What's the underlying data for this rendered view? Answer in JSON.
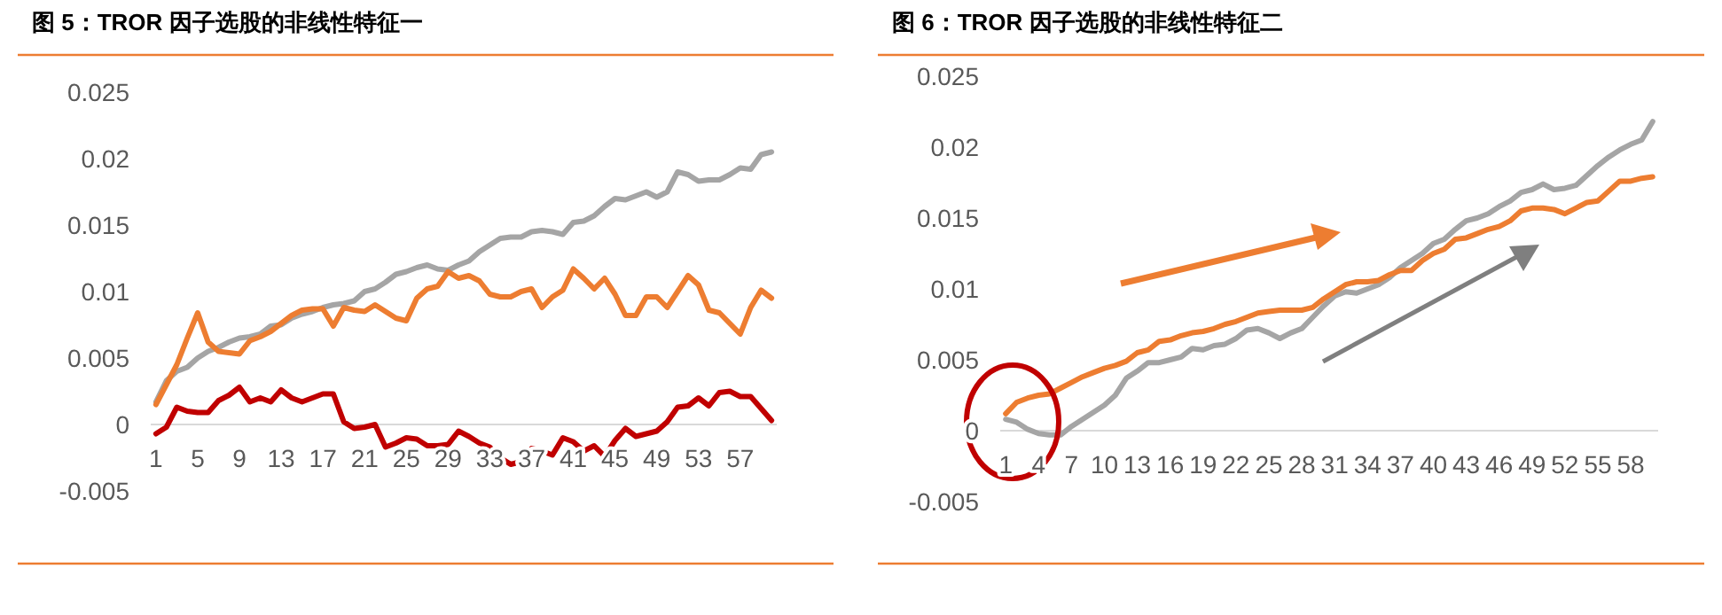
{
  "chart_data": [
    {
      "type": "line",
      "title": "图 5：TROR 因子选股的非线性特征一",
      "categories": [
        "1",
        null,
        null,
        null,
        "5",
        null,
        null,
        null,
        "9",
        null,
        null,
        null,
        "13",
        null,
        null,
        null,
        "17",
        null,
        null,
        null,
        "21",
        null,
        null,
        null,
        "25",
        null,
        null,
        null,
        "29",
        null,
        null,
        null,
        "33",
        null,
        null,
        null,
        "37",
        null,
        null,
        null,
        "41",
        null,
        null,
        null,
        "45",
        null,
        null,
        null,
        "49",
        null,
        null,
        null,
        "53",
        null,
        null,
        null,
        "57",
        null,
        null,
        null
      ],
      "ylim": [
        -0.005,
        0.025
      ],
      "yticks": [
        -0.005,
        0,
        0.005,
        0.01,
        0.015,
        0.02,
        0.025
      ],
      "grid": false,
      "marker": "none",
      "line_style": "solid",
      "series": [
        {
          "color": "#a5a5a5",
          "values": [
            0.0017,
            0.0033,
            0.004,
            0.0043,
            0.005,
            0.0055,
            0.0058,
            0.0062,
            0.0065,
            0.0066,
            0.0068,
            0.0074,
            0.0075,
            0.008,
            0.0083,
            0.0085,
            0.0088,
            0.009,
            0.0091,
            0.0093,
            0.01,
            0.0102,
            0.0107,
            0.0113,
            0.0115,
            0.0118,
            0.012,
            0.0117,
            0.0116,
            0.012,
            0.0123,
            0.013,
            0.0135,
            0.014,
            0.0141,
            0.0141,
            0.0145,
            0.0146,
            0.0145,
            0.0143,
            0.0152,
            0.0153,
            0.0157,
            0.0164,
            0.017,
            0.0169,
            0.0172,
            0.0175,
            0.0171,
            0.0175,
            0.019,
            0.0188,
            0.0183,
            0.0184,
            0.0184,
            0.0188,
            0.0193,
            0.0192,
            0.0203,
            0.0205
          ]
        },
        {
          "color": "#ed7d31",
          "values": [
            0.0015,
            0.003,
            0.0045,
            0.0065,
            0.0084,
            0.0062,
            0.0055,
            0.0054,
            0.0053,
            0.0063,
            0.0066,
            0.007,
            0.0076,
            0.0082,
            0.0086,
            0.0087,
            0.0087,
            0.0074,
            0.0088,
            0.0086,
            0.0085,
            0.009,
            0.0085,
            0.008,
            0.0078,
            0.0095,
            0.0102,
            0.0104,
            0.0115,
            0.011,
            0.0112,
            0.0108,
            0.0098,
            0.0096,
            0.0096,
            0.01,
            0.0102,
            0.0088,
            0.0096,
            0.0101,
            0.0117,
            0.011,
            0.0102,
            0.011,
            0.0098,
            0.0082,
            0.0082,
            0.0096,
            0.0096,
            0.0088,
            0.01,
            0.0112,
            0.0105,
            0.0086,
            0.0084,
            0.0076,
            0.0068,
            0.0088,
            0.0101,
            0.0095
          ]
        },
        {
          "color": "#c00000",
          "values": [
            -0.0007,
            -0.0002,
            0.0013,
            0.001,
            0.0009,
            0.0009,
            0.0018,
            0.0022,
            0.0028,
            0.0017,
            0.002,
            0.0017,
            0.0026,
            0.002,
            0.0017,
            0.002,
            0.0023,
            0.0023,
            0.0002,
            -0.0003,
            -0.0002,
            0.0,
            -0.0017,
            -0.0014,
            -0.001,
            -0.0011,
            -0.0016,
            -0.0016,
            -0.0015,
            -0.0005,
            -0.0009,
            -0.0014,
            -0.0017,
            -0.0025,
            -0.003,
            -0.0028,
            -0.0018,
            -0.002,
            -0.0023,
            -0.001,
            -0.0013,
            -0.002,
            -0.0016,
            -0.0024,
            -0.0012,
            -0.0003,
            -0.0009,
            -0.0007,
            -0.0005,
            0.0002,
            0.0013,
            0.0014,
            0.002,
            0.0014,
            0.0024,
            0.0025,
            0.0021,
            0.0021,
            0.0012,
            0.0003
          ]
        }
      ]
    },
    {
      "type": "line",
      "title": "图 6：TROR 因子选股的非线性特征二",
      "categories": [
        "1",
        null,
        null,
        "4",
        null,
        null,
        "7",
        null,
        null,
        "10",
        null,
        null,
        "13",
        null,
        null,
        "16",
        null,
        null,
        "19",
        null,
        null,
        "22",
        null,
        null,
        "25",
        null,
        null,
        "28",
        null,
        null,
        "31",
        null,
        null,
        "34",
        null,
        null,
        "37",
        null,
        null,
        "40",
        null,
        null,
        "43",
        null,
        null,
        "46",
        null,
        null,
        "49",
        null,
        null,
        "52",
        null,
        null,
        "55",
        null,
        null,
        "58",
        null,
        null
      ],
      "ylim": [
        -0.005,
        0.025
      ],
      "yticks": [
        -0.005,
        0,
        0.005,
        0.01,
        0.015,
        0.02,
        0.025
      ],
      "grid": false,
      "marker": "none",
      "line_style": "solid",
      "series": [
        {
          "color": "#a5a5a5",
          "values": [
            0.0008,
            0.0006,
            0.0001,
            -0.0002,
            -0.0003,
            -0.0003,
            0.0003,
            0.0008,
            0.0013,
            0.0018,
            0.0025,
            0.0037,
            0.0042,
            0.0048,
            0.0048,
            0.005,
            0.0052,
            0.0058,
            0.0057,
            0.006,
            0.0061,
            0.0065,
            0.0071,
            0.0072,
            0.0069,
            0.0065,
            0.0069,
            0.0072,
            0.008,
            0.0088,
            0.0095,
            0.0098,
            0.0097,
            0.01,
            0.0103,
            0.0108,
            0.0115,
            0.012,
            0.0125,
            0.0132,
            0.0135,
            0.0142,
            0.0148,
            0.015,
            0.0153,
            0.0158,
            0.0162,
            0.0168,
            0.017,
            0.0174,
            0.017,
            0.0171,
            0.0173,
            0.018,
            0.0187,
            0.0193,
            0.0198,
            0.0202,
            0.0205,
            0.0218
          ]
        },
        {
          "color": "#ed7d31",
          "values": [
            0.0012,
            0.002,
            0.0023,
            0.0025,
            0.0026,
            0.003,
            0.0034,
            0.0038,
            0.0041,
            0.0044,
            0.0046,
            0.0049,
            0.0055,
            0.0057,
            0.0063,
            0.0064,
            0.0067,
            0.0069,
            0.007,
            0.0072,
            0.0075,
            0.0077,
            0.008,
            0.0083,
            0.0084,
            0.0085,
            0.0085,
            0.0085,
            0.0087,
            0.0093,
            0.0098,
            0.0103,
            0.0105,
            0.0105,
            0.0106,
            0.011,
            0.0113,
            0.0113,
            0.012,
            0.0125,
            0.0128,
            0.0135,
            0.0136,
            0.0139,
            0.0142,
            0.0144,
            0.0148,
            0.0155,
            0.0157,
            0.0157,
            0.0156,
            0.0153,
            0.0157,
            0.0161,
            0.0162,
            0.0169,
            0.0176,
            0.0176,
            0.0178,
            0.0179
          ]
        }
      ]
    }
  ]
}
